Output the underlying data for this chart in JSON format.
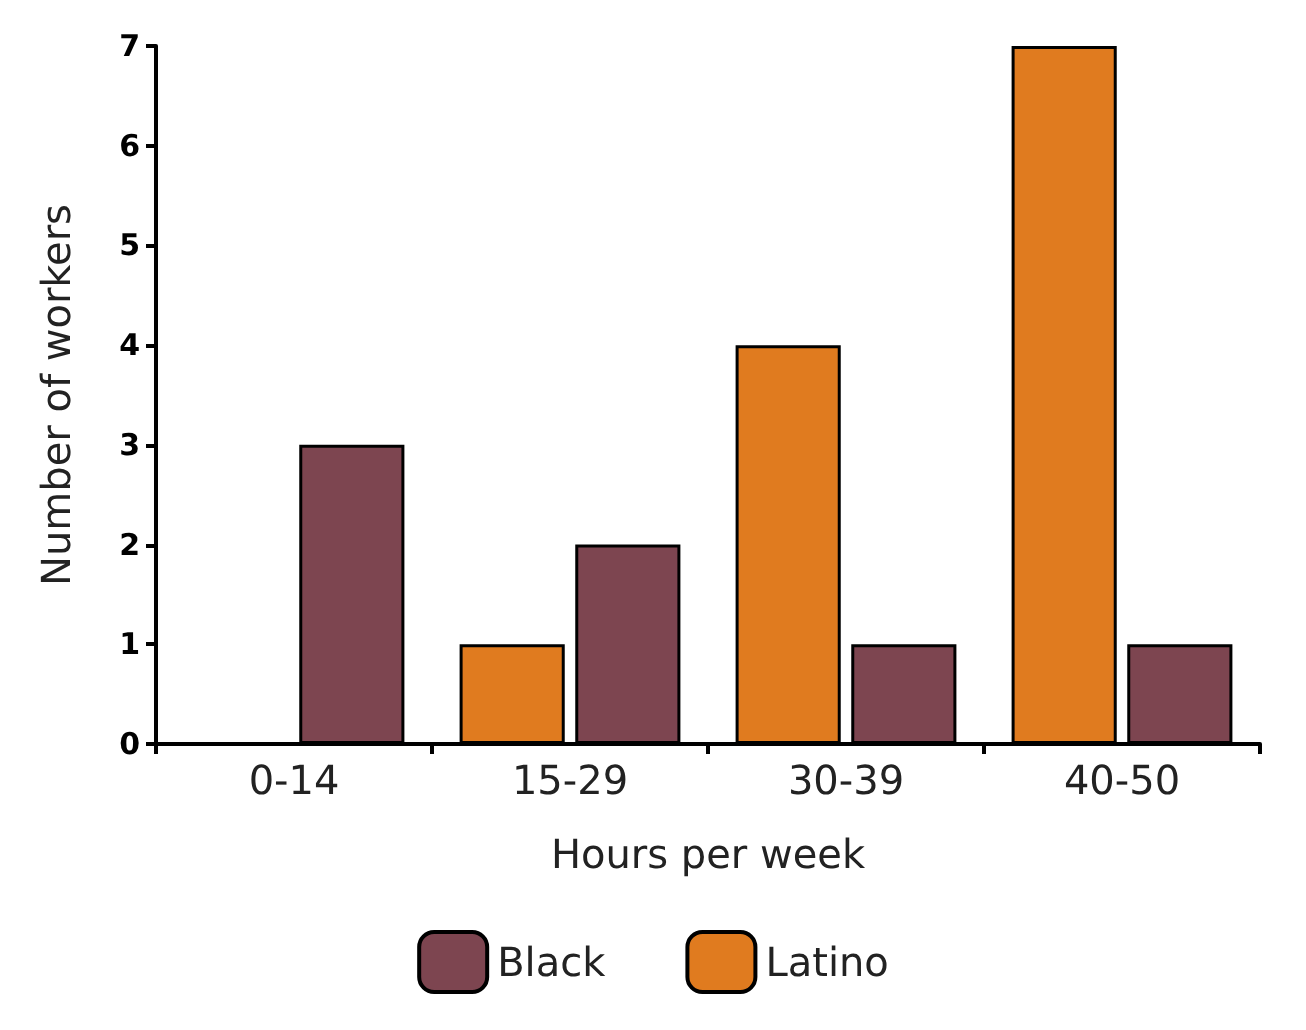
{
  "chart_data": {
    "type": "bar",
    "xlabel": "Hours per week",
    "ylabel": "Number of workers",
    "categories": [
      "0-14",
      "15-29",
      "30-39",
      "40-50"
    ],
    "series": [
      {
        "name": "Latino",
        "color": "#e07b1f",
        "values": [
          0,
          1,
          4,
          7
        ]
      },
      {
        "name": "Black",
        "color": "#7d4550",
        "values": [
          3,
          2,
          1,
          1
        ]
      }
    ],
    "ylim": [
      0,
      7
    ],
    "yticks": [
      0,
      1,
      2,
      3,
      4,
      5,
      6,
      7
    ],
    "grid": false,
    "legend": "bottom"
  }
}
